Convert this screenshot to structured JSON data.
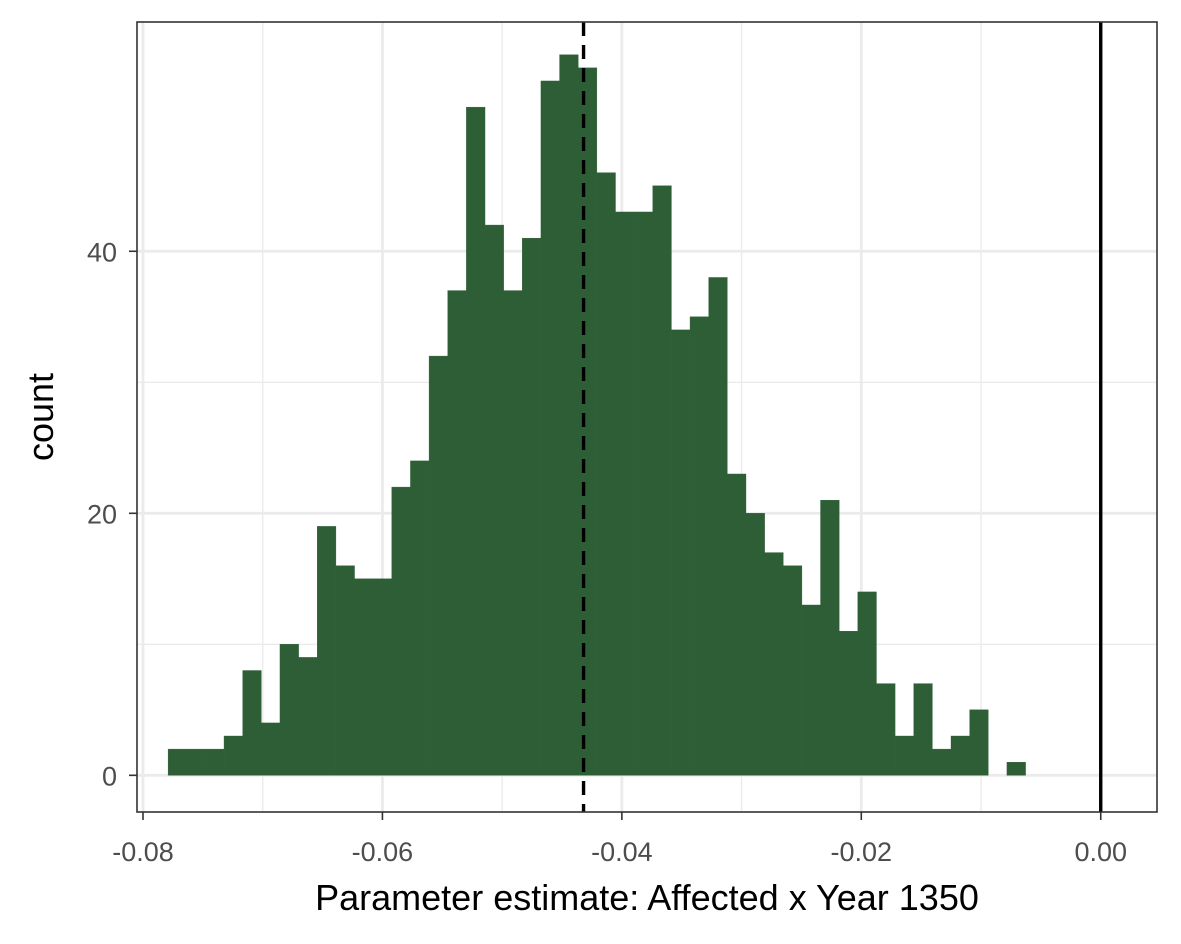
{
  "chart_data": {
    "type": "bar",
    "xlabel": "Parameter estimate: Affected x Year 1350",
    "ylabel": "count",
    "xlim": [
      -0.0805,
      0.0047
    ],
    "ylim": [
      -2.8,
      57.5
    ],
    "x_ticks": [
      -0.08,
      -0.06,
      -0.04,
      -0.02,
      0.0
    ],
    "x_tick_labels": [
      "-0.08",
      "-0.06",
      "-0.04",
      "-0.02",
      "0.00"
    ],
    "y_ticks": [
      0,
      20,
      40
    ],
    "y_tick_labels": [
      "0",
      "20",
      "40"
    ],
    "grid": true,
    "bin_start": -0.0779,
    "bin_width": 0.001557,
    "counts": [
      2,
      2,
      2,
      3,
      8,
      4,
      10,
      9,
      19,
      16,
      15,
      15,
      22,
      24,
      32,
      37,
      51,
      42,
      37,
      41,
      53,
      55,
      54,
      46,
      43,
      43,
      45,
      34,
      35,
      38,
      23,
      20,
      17,
      16,
      13,
      21,
      11,
      14,
      7,
      3,
      7,
      2,
      3,
      5,
      0,
      1
    ],
    "bar_color": "#2e5e36",
    "vlines": [
      {
        "x": -0.0432,
        "style": "dashed",
        "color": "#000000"
      },
      {
        "x": 0.0,
        "style": "solid",
        "color": "#000000"
      }
    ]
  }
}
